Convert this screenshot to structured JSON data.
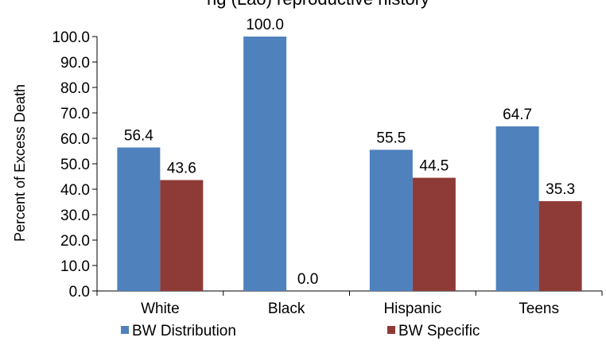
{
  "chart_data": {
    "type": "bar",
    "title": "Percent of excess deaths due to birth weight distribution (BW Distribution) vs. birth weight specific mortality (BW Specific) relative to Hmong (Lao) reproductive history",
    "title_visible_fragment": "ng (Lao) reproductive history",
    "xlabel": "",
    "ylabel": "Percent of Excess Death",
    "ylim": [
      0,
      100
    ],
    "y_ticks": [
      "0.0",
      "10.0",
      "20.0",
      "30.0",
      "40.0",
      "50.0",
      "60.0",
      "70.0",
      "80.0",
      "90.0",
      "100.0"
    ],
    "categories": [
      "White",
      "Black",
      "Hispanic",
      "Teens"
    ],
    "series": [
      {
        "name": "BW Distribution",
        "color": "#4F81BD",
        "values": [
          56.4,
          100.0,
          55.5,
          64.7
        ],
        "labels": [
          "56.4",
          "100.0",
          "55.5",
          "64.7"
        ]
      },
      {
        "name": "BW Specific",
        "color": "#8E3B38",
        "values": [
          43.6,
          0.0,
          44.5,
          35.3
        ],
        "labels": [
          "43.6",
          "0.0",
          "44.5",
          "35.3"
        ]
      }
    ],
    "grid": false,
    "legend_position": "bottom"
  }
}
